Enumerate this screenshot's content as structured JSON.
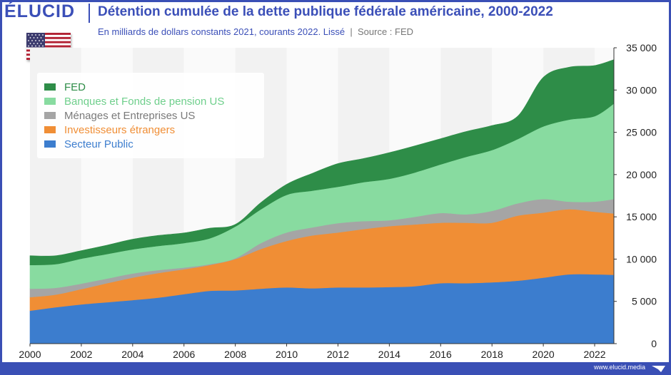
{
  "header": {
    "logo": "ÉLUCID",
    "title": "Détention cumulée de la dette publique fédérale américaine, 2000-2022",
    "subtitle": "En milliards de dollars constants 2021, courants 2022. Lissé",
    "separator": "|",
    "source": "Source : FED"
  },
  "flag": {
    "icon": "us-flag-icon"
  },
  "footer": {
    "text": "www.elucid.media",
    "icon": "elucid-arrow-icon"
  },
  "colors": {
    "secteur_public": "#3c7dce",
    "investisseurs": "#f08e35",
    "menages": "#a5a5a5",
    "banques": "#88dba0",
    "fed": "#2e8d48",
    "brand": "#3b4fb8"
  },
  "chart_data": {
    "type": "area",
    "stacked": true,
    "x": [
      2000,
      2001,
      2002,
      2003,
      2004,
      2005,
      2006,
      2007,
      2008,
      2009,
      2010,
      2011,
      2012,
      2013,
      2014,
      2015,
      2016,
      2017,
      2018,
      2019,
      2020,
      2021,
      2022,
      2022.75
    ],
    "series": [
      {
        "name": "Secteur Public",
        "color": "#3c7dce",
        "values": [
          3900,
          4300,
          4650,
          4900,
          5150,
          5450,
          5850,
          6250,
          6300,
          6500,
          6650,
          6550,
          6650,
          6650,
          6700,
          6800,
          7150,
          7150,
          7250,
          7450,
          7800,
          8200,
          8200,
          8150
        ]
      },
      {
        "name": "Investisseurs étrangers",
        "color": "#f08e35",
        "values": [
          1600,
          1500,
          1800,
          2250,
          2650,
          2900,
          2950,
          3050,
          3700,
          4700,
          5500,
          6250,
          6500,
          6900,
          7200,
          7300,
          7150,
          7150,
          7050,
          7700,
          7700,
          7700,
          7400,
          7250
        ]
      },
      {
        "name": "Ménages et Entreprises US",
        "color": "#a5a5a5",
        "values": [
          1000,
          800,
          650,
          550,
          500,
          350,
          200,
          100,
          100,
          700,
          1000,
          950,
          1100,
          950,
          700,
          900,
          1150,
          1000,
          1400,
          1450,
          1600,
          900,
          1200,
          1700
        ]
      },
      {
        "name": "Banques et Fonds de pension US",
        "color": "#88dba0",
        "values": [
          2800,
          2800,
          2950,
          2900,
          2850,
          2850,
          2900,
          3050,
          3750,
          4000,
          4450,
          4350,
          4300,
          4600,
          4900,
          5250,
          5750,
          6800,
          7200,
          7600,
          8600,
          9700,
          10100,
          11300
        ]
      },
      {
        "name": "FED",
        "color": "#2e8d48",
        "values": [
          1100,
          1000,
          950,
          1050,
          1200,
          1250,
          1200,
          1200,
          250,
          800,
          1250,
          2050,
          2750,
          2800,
          3100,
          3150,
          3050,
          3000,
          2900,
          2700,
          5800,
          6200,
          6000,
          5200
        ]
      }
    ],
    "xlim": [
      2000,
      2022.75
    ],
    "ylim": [
      0,
      35000
    ],
    "x_ticks": [
      "2000",
      "2002",
      "2004",
      "2006",
      "2008",
      "2010",
      "2012",
      "2014",
      "2016",
      "2018",
      "2020",
      "2022"
    ],
    "y_ticks": [
      "0",
      "5 000",
      "10 000",
      "15 000",
      "20 000",
      "25 000",
      "30 000",
      "35 000"
    ],
    "legend_position": "top-left",
    "grid": "alternating vertical bands"
  }
}
